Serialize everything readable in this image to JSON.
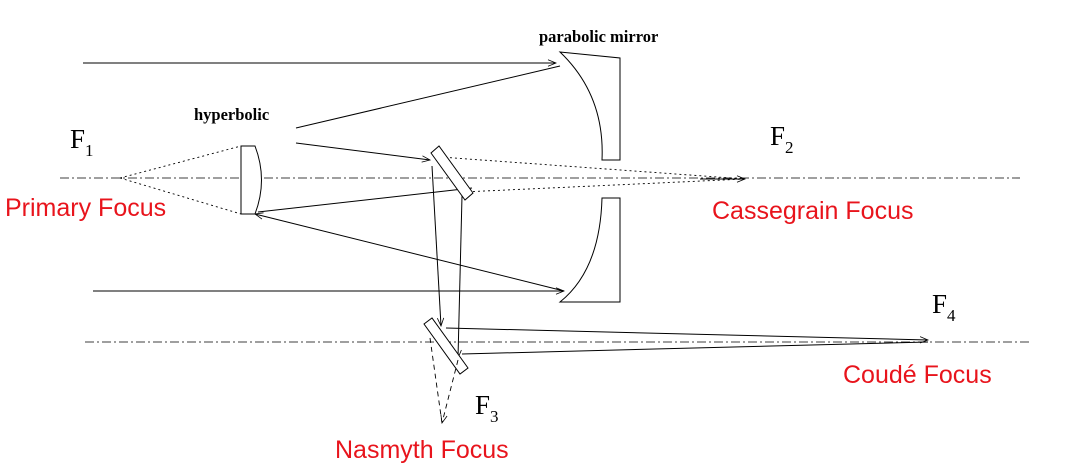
{
  "labels": {
    "parabolic_mirror": "parabolic mirror",
    "hyperbolic": "hyperbolic",
    "f1": {
      "main": "F",
      "sub": "1"
    },
    "f2": {
      "main": "F",
      "sub": "2"
    },
    "f3": {
      "main": "F",
      "sub": "3"
    },
    "f4": {
      "main": "F",
      "sub": "4"
    },
    "primary_focus": "Primary Focus",
    "cassegrain_focus": "Cassegrain Focus",
    "nasmyth_focus": "Nasmyth Focus",
    "coude_focus": "Coudé Focus"
  },
  "colors": {
    "focus_label": "#e8141c",
    "ink": "#000000"
  }
}
